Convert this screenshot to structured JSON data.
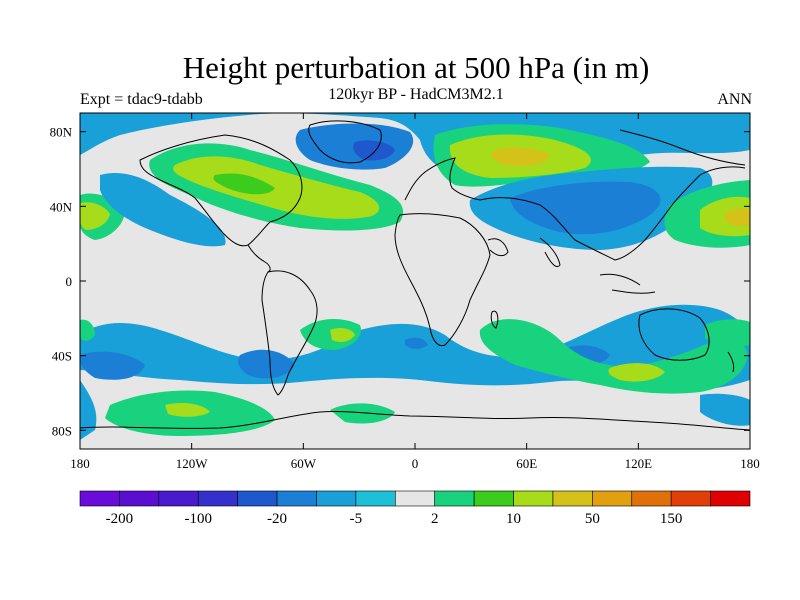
{
  "title": "Height perturbation at 500 hPa (in m)",
  "subtitle": "120kyr BP - HadCM3M2.1",
  "left_label": "Expt = tdac9-tdabb",
  "right_label": "ANN",
  "axes": {
    "lon_ticks": [
      "180",
      "120W",
      "60W",
      "0",
      "60E",
      "120E",
      "180"
    ],
    "lat_ticks": [
      "80N",
      "40N",
      "0",
      "40S",
      "80S"
    ]
  },
  "colorbar": {
    "colors": [
      "#6a0cd9",
      "#5a0fd0",
      "#4a1bcc",
      "#3330cc",
      "#1f58cc",
      "#1b7fd6",
      "#19a0d8",
      "#1ec0d8",
      "#e6e6e6",
      "#19d27d",
      "#3ccc1e",
      "#a6dc1a",
      "#d4c21a",
      "#e0a010",
      "#e07008",
      "#e04008",
      "#e00000"
    ],
    "labels": [
      "-200",
      "-100",
      "-20",
      "-5",
      "2",
      "10",
      "50",
      "150"
    ]
  }
}
